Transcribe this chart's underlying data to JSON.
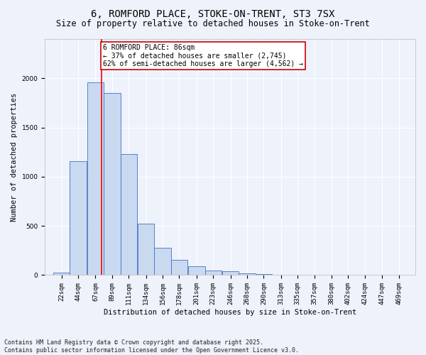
{
  "title1": "6, ROMFORD PLACE, STOKE-ON-TRENT, ST3 7SX",
  "title2": "Size of property relative to detached houses in Stoke-on-Trent",
  "xlabel": "Distribution of detached houses by size in Stoke-on-Trent",
  "ylabel": "Number of detached properties",
  "bar_values": [
    25,
    1160,
    1960,
    1850,
    1230,
    520,
    275,
    155,
    90,
    45,
    40,
    20,
    10,
    5,
    3,
    3,
    2,
    2,
    2,
    2
  ],
  "bin_labels": [
    "22sqm",
    "44sqm",
    "67sqm",
    "89sqm",
    "111sqm",
    "134sqm",
    "156sqm",
    "178sqm",
    "201sqm",
    "223sqm",
    "246sqm",
    "268sqm",
    "290sqm",
    "313sqm",
    "335sqm",
    "357sqm",
    "380sqm",
    "402sqm",
    "424sqm",
    "447sqm",
    "469sqm"
  ],
  "bar_color": "#c9d9f0",
  "bar_edge_color": "#4472c4",
  "background_color": "#edf2fb",
  "grid_color": "#ffffff",
  "vline_color": "#ff0000",
  "annotation_text": "6 ROMFORD PLACE: 86sqm\n← 37% of detached houses are smaller (2,745)\n62% of semi-detached houses are larger (4,562) →",
  "annotation_box_color": "#ffffff",
  "annotation_box_edge": "#cc0000",
  "footnote1": "Contains HM Land Registry data © Crown copyright and database right 2025.",
  "footnote2": "Contains public sector information licensed under the Open Government Licence v3.0.",
  "ylim": [
    0,
    2400
  ],
  "bin_edges": [
    22,
    44,
    67,
    89,
    111,
    134,
    156,
    178,
    201,
    223,
    246,
    268,
    290,
    313,
    335,
    357,
    380,
    402,
    424,
    447,
    469
  ],
  "property_sqm": 86,
  "title1_fontsize": 10,
  "title2_fontsize": 8.5,
  "ylabel_fontsize": 7.5,
  "xlabel_fontsize": 7.5,
  "tick_fontsize": 6.5,
  "ann_fontsize": 7,
  "footnote_fontsize": 6
}
